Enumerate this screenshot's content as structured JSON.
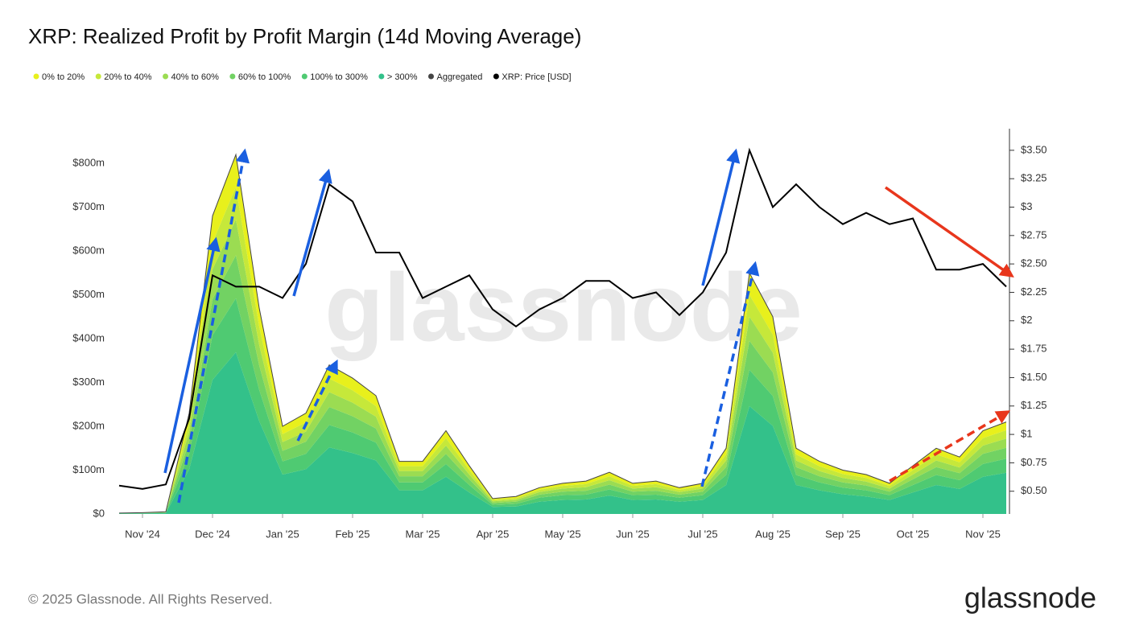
{
  "chart_data": {
    "type": "stacked-area",
    "title": "XRP: Realized Profit by Profit Margin (14d Moving Average)",
    "watermark": "glassnode",
    "footer": "© 2025 Glassnode. All Rights Reserved.",
    "logo": "glassnode",
    "categories": [
      null,
      "Nov '24",
      null,
      null,
      "Dec '24",
      null,
      null,
      "Jan '25",
      null,
      null,
      "Feb '25",
      null,
      null,
      "Mar '25",
      null,
      null,
      "Apr '25",
      null,
      null,
      "May '25",
      null,
      null,
      "Jun '25",
      null,
      null,
      "Jul '25",
      null,
      null,
      "Aug '25",
      null,
      null,
      "Sep '25",
      null,
      null,
      "Oct '25",
      null,
      null,
      "Nov '25",
      null
    ],
    "ylim": [
      0,
      879
    ],
    "yticks": [
      {
        "value": 0,
        "label": "$0"
      },
      {
        "value": 100,
        "label": "$100m"
      },
      {
        "value": 200,
        "label": "$200m"
      },
      {
        "value": 300,
        "label": "$300m"
      },
      {
        "value": 400,
        "label": "$400m"
      },
      {
        "value": 500,
        "label": "$500m"
      },
      {
        "value": 600,
        "label": "$600m"
      },
      {
        "value": 700,
        "label": "$700m"
      },
      {
        "value": 800,
        "label": "$800m"
      }
    ],
    "y2lim": [
      0.3,
      3.69
    ],
    "y2ticks": [
      {
        "value": 0.5,
        "label": "$0.50"
      },
      {
        "value": 0.75,
        "label": "$0.75"
      },
      {
        "value": 1,
        "label": "$1"
      },
      {
        "value": 1.25,
        "label": "$1.25"
      },
      {
        "value": 1.5,
        "label": "$1.50"
      },
      {
        "value": 1.75,
        "label": "$1.75"
      },
      {
        "value": 2,
        "label": "$2"
      },
      {
        "value": 2.25,
        "label": "$2.25"
      },
      {
        "value": 2.5,
        "label": "$2.50"
      },
      {
        "value": 2.75,
        "label": "$2.75"
      },
      {
        "value": 3,
        "label": "$3"
      },
      {
        "value": 3.25,
        "label": "$3.25"
      },
      {
        "value": 3.5,
        "label": "$3.50"
      }
    ],
    "series": [
      {
        "name": "0% to 20%",
        "color": "#e8f01c",
        "mark": "area",
        "values": [
          0.2,
          0.3,
          0.5,
          21,
          61,
          74,
          42,
          18,
          21,
          31,
          28,
          24,
          11,
          11,
          17,
          10,
          3,
          4,
          5,
          6,
          7,
          9,
          6,
          7,
          5,
          6,
          14,
          50,
          41,
          14,
          11,
          9,
          8,
          6,
          10,
          14,
          12,
          17,
          19
        ]
      },
      {
        "name": "20% to 40%",
        "color": "#c6e83a",
        "mark": "area",
        "values": [
          0.2,
          0.3,
          0.5,
          21,
          61,
          74,
          42,
          18,
          21,
          31,
          28,
          24,
          11,
          11,
          17,
          10,
          3,
          4,
          5,
          6,
          7,
          9,
          6,
          7,
          5,
          6,
          14,
          50,
          41,
          14,
          11,
          9,
          8,
          6,
          10,
          14,
          12,
          17,
          19
        ]
      },
      {
        "name": "40% to 60%",
        "color": "#9bdc52",
        "mark": "area",
        "values": [
          0.2,
          0.3,
          0.5,
          23,
          68,
          82,
          47,
          20,
          23,
          34,
          31,
          27,
          12,
          12,
          19,
          11,
          4,
          4,
          6,
          7,
          8,
          10,
          7,
          8,
          6,
          7,
          15,
          55,
          45,
          15,
          12,
          10,
          9,
          7,
          11,
          15,
          13,
          19,
          21
        ]
      },
      {
        "name": "60% to 100%",
        "color": "#72d263",
        "mark": "area",
        "values": [
          0.2,
          0.4,
          0.6,
          28,
          82,
          98,
          56,
          24,
          28,
          41,
          37,
          32,
          14,
          14,
          23,
          13,
          4,
          5,
          7,
          8,
          9,
          11,
          8,
          9,
          7,
          8,
          18,
          66,
          54,
          18,
          14,
          12,
          11,
          8,
          13,
          18,
          16,
          23,
          25
        ]
      },
      {
        "name": "100% to 300%",
        "color": "#4fca72",
        "mark": "area",
        "values": [
          0.3,
          0.4,
          0.8,
          35,
          102,
          123,
          71,
          30,
          35,
          51,
          47,
          41,
          18,
          18,
          29,
          17,
          5,
          6,
          9,
          11,
          11,
          14,
          11,
          11,
          9,
          11,
          23,
          83,
          68,
          23,
          18,
          15,
          14,
          11,
          17,
          23,
          20,
          29,
          32
        ]
      },
      {
        "name": "> 300%",
        "color": "#33c18a",
        "mark": "area",
        "values": [
          0.9,
          1.3,
          2.1,
          102,
          306,
          369,
          212,
          90,
          102,
          152,
          139,
          122,
          54,
          54,
          85,
          49,
          16,
          17,
          28,
          32,
          33,
          42,
          32,
          33,
          28,
          32,
          66,
          246,
          201,
          66,
          54,
          45,
          40,
          32,
          49,
          66,
          57,
          85,
          94
        ]
      },
      {
        "name": "Aggregated",
        "color": "#444444",
        "mark": "line",
        "values": [
          2,
          3,
          5,
          230,
          680,
          820,
          470,
          200,
          230,
          340,
          310,
          270,
          120,
          120,
          190,
          110,
          35,
          40,
          60,
          70,
          75,
          95,
          70,
          75,
          60,
          70,
          150,
          550,
          450,
          150,
          120,
          100,
          90,
          70,
          110,
          150,
          130,
          190,
          210
        ]
      },
      {
        "name": "XRP: Price [USD]",
        "color": "#000000",
        "mark": "line",
        "axis": "y2",
        "values": [
          0.55,
          0.52,
          0.56,
          1.14,
          2.4,
          2.3,
          2.3,
          2.2,
          2.5,
          3.2,
          3.05,
          2.6,
          2.6,
          2.2,
          2.3,
          2.4,
          2.1,
          1.95,
          2.1,
          2.2,
          2.35,
          2.35,
          2.2,
          2.25,
          2.05,
          2.25,
          2.6,
          3.5,
          3.0,
          3.2,
          3.0,
          2.85,
          2.95,
          2.85,
          2.9,
          2.45,
          2.45,
          2.5,
          2.3
        ]
      }
    ]
  }
}
